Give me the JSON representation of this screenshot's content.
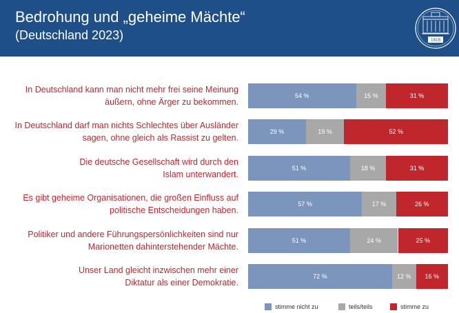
{
  "header": {
    "title": "Bedrohung und „geheime Mächte“",
    "subtitle": "(Deutschland 2023)",
    "logo_year": "1818"
  },
  "colors": {
    "header_bg": "#1f4f88",
    "disagree": "#7b95bd",
    "partly": "#a8a8a8",
    "agree": "#c0272d"
  },
  "chart_data": {
    "type": "bar",
    "orientation": "horizontal",
    "stacked": true,
    "normalized_to": 100,
    "title": "Bedrohung und „geheime Mächte“",
    "subtitle": "(Deutschland 2023)",
    "value_format": "{v} %",
    "categories": [
      [
        "In Deutschland kann man nicht mehr frei seine Meinung",
        "äußern, ohne Ärger zu bekommen."
      ],
      [
        "In Deutschland darf man nichts Schlechtes über Ausländer",
        "sagen, ohne gleich als Rassist zu gelten."
      ],
      [
        "Die deutsche Gesellschaft wird durch den",
        "Islam unterwandert."
      ],
      [
        "Es gibt geheime Organisationen, die großen Einfluss auf",
        "politische Entscheidungen haben."
      ],
      [
        "Politiker und andere Führungspersönlichkeiten sind nur",
        "Marionetten dahinterstehender Mächte."
      ],
      [
        "Unser Land gleicht inzwischen mehr einer",
        "Diktatur als einer Demokratie."
      ]
    ],
    "series": [
      {
        "name": "stimme nicht zu",
        "values": [
          54,
          29,
          51,
          57,
          51,
          72
        ]
      },
      {
        "name": "teils/teils",
        "values": [
          15,
          19,
          18,
          17,
          24,
          12
        ]
      },
      {
        "name": "stimme zu",
        "values": [
          31,
          52,
          31,
          26,
          25,
          16
        ]
      }
    ],
    "legend_position": "bottom"
  }
}
